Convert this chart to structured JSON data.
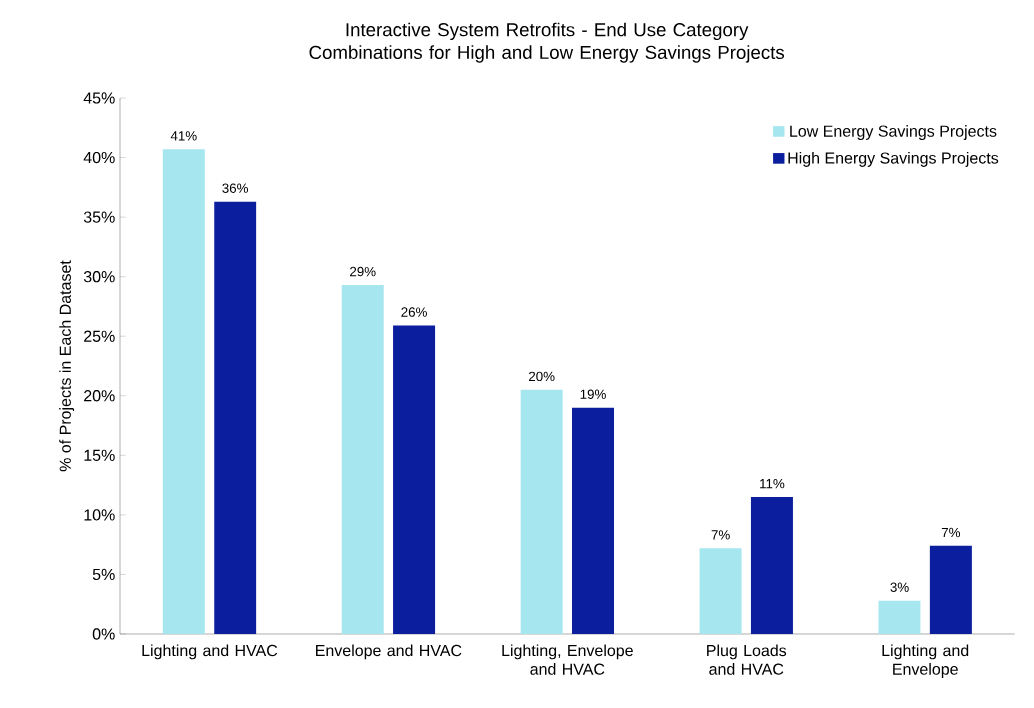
{
  "chart_data": {
    "type": "bar",
    "title": "Interactive System Retrofits - End Use Category Combinations for High and Low Energy Savings Projects",
    "ylabel": "% of Projects in Each Dataset",
    "categories": [
      "Lighting and HVAC",
      "Envelope and HVAC",
      "Lighting, Envelope and HVAC",
      "Plug Loads and HVAC",
      "Lighting and Envelope"
    ],
    "series": [
      {
        "name": "Low Energy Savings Projects",
        "color": "#a6e6ef",
        "values": [
          40.7,
          29.3,
          20.5,
          7.2,
          2.8
        ],
        "value_labels": [
          "41%",
          "29%",
          "20%",
          "7%",
          "3%"
        ]
      },
      {
        "name": "High Energy Savings Projects",
        "color": "#0a1e9e",
        "values": [
          36.3,
          25.9,
          19.0,
          11.5,
          7.4
        ],
        "value_labels": [
          "36%",
          "26%",
          "19%",
          "11%",
          "7%"
        ]
      }
    ],
    "ylim": [
      0,
      45
    ],
    "yticks": [
      {
        "value": 0,
        "label": "0%"
      },
      {
        "value": 5,
        "label": "5%"
      },
      {
        "value": 10,
        "label": "10%"
      },
      {
        "value": 15,
        "label": "15%"
      },
      {
        "value": 20,
        "label": "20%"
      },
      {
        "value": 25,
        "label": "25%"
      },
      {
        "value": 30,
        "label": "30%"
      },
      {
        "value": 35,
        "label": "35%"
      },
      {
        "value": 40,
        "label": "40%"
      },
      {
        "value": 45,
        "label": "45%"
      }
    ],
    "legend": "top right",
    "grid": false
  }
}
